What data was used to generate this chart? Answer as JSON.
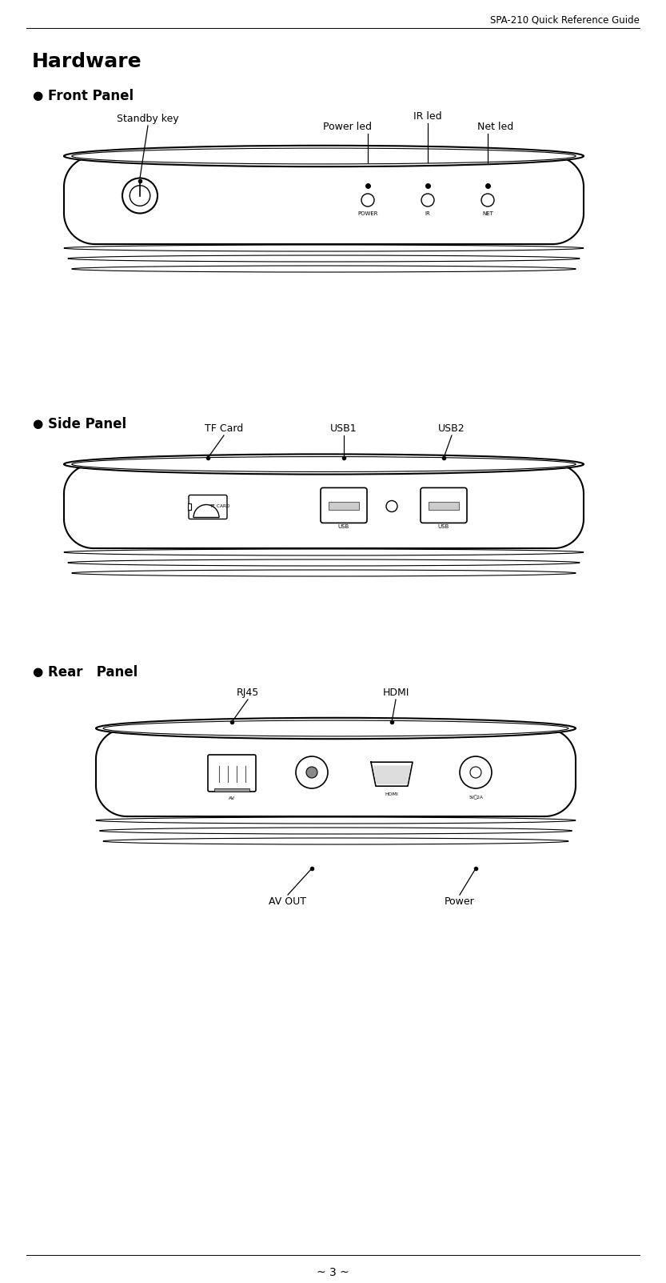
{
  "page_title": "SPA-210 Quick Reference Guide",
  "section_title": "Hardware",
  "bg_color": "#ffffff",
  "text_color": "#000000",
  "footer_text": "~ 3 ~",
  "line_color": "#000000"
}
